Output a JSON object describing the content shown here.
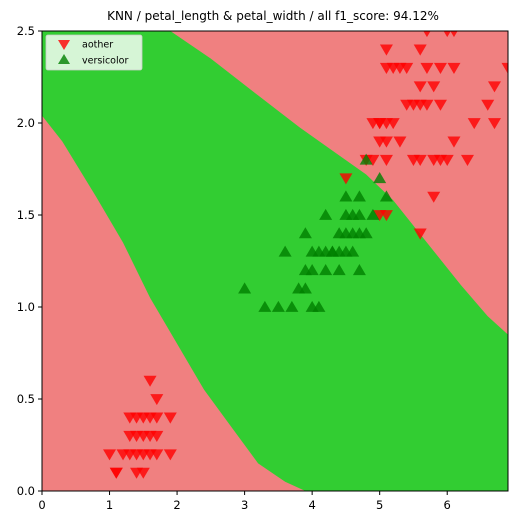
{
  "chart_data": {
    "type": "scatter",
    "title": "KNN / petal_length & petal_width / all f1_score: 94.12%",
    "xlabel": "",
    "ylabel": "",
    "xlim": [
      0,
      6.9
    ],
    "ylim": [
      0,
      2.5
    ],
    "x_ticks": [
      "0",
      "1",
      "2",
      "3",
      "4",
      "5",
      "6"
    ],
    "y_ticks": [
      "0.0",
      "0.5",
      "1.0",
      "1.5",
      "2.0",
      "2.5"
    ],
    "legend_position": "top-left",
    "grid": false,
    "background_regions": {
      "description_colors": {
        "aother": "#f08080",
        "versicolor": "#32cd32"
      },
      "green_band_left_boundary": [
        [
          0,
          2.04
        ],
        [
          0.3,
          1.9
        ],
        [
          0.8,
          1.6
        ],
        [
          1.2,
          1.35
        ],
        [
          1.6,
          1.05
        ],
        [
          2.0,
          0.8
        ],
        [
          2.4,
          0.55
        ],
        [
          2.8,
          0.35
        ],
        [
          3.2,
          0.15
        ],
        [
          3.6,
          0.05
        ],
        [
          3.9,
          0.0
        ]
      ],
      "green_band_right_boundary": [
        [
          1.9,
          2.5
        ],
        [
          2.5,
          2.35
        ],
        [
          3.2,
          2.15
        ],
        [
          3.8,
          1.98
        ],
        [
          4.3,
          1.85
        ],
        [
          4.8,
          1.72
        ],
        [
          5.2,
          1.58
        ],
        [
          5.7,
          1.35
        ],
        [
          6.2,
          1.12
        ],
        [
          6.6,
          0.95
        ],
        [
          6.9,
          0.85
        ]
      ]
    },
    "series": [
      {
        "name": "aother",
        "marker": "triangle-down",
        "color": "#ff0000",
        "points": [
          [
            1.0,
            0.2
          ],
          [
            1.1,
            0.1
          ],
          [
            1.2,
            0.2
          ],
          [
            1.3,
            0.2
          ],
          [
            1.3,
            0.3
          ],
          [
            1.3,
            0.4
          ],
          [
            1.4,
            0.1
          ],
          [
            1.4,
            0.2
          ],
          [
            1.4,
            0.3
          ],
          [
            1.5,
            0.1
          ],
          [
            1.5,
            0.2
          ],
          [
            1.5,
            0.4
          ],
          [
            1.6,
            0.2
          ],
          [
            1.6,
            0.4
          ],
          [
            1.6,
            0.6
          ],
          [
            1.7,
            0.2
          ],
          [
            1.7,
            0.3
          ],
          [
            1.7,
            0.4
          ],
          [
            1.7,
            0.5
          ],
          [
            1.9,
            0.2
          ],
          [
            1.9,
            0.4
          ],
          [
            1.4,
            0.4
          ],
          [
            1.6,
            0.3
          ],
          [
            1.5,
            0.3
          ],
          [
            1.1,
            0.1
          ],
          [
            4.5,
            1.7
          ],
          [
            4.8,
            1.8
          ],
          [
            4.9,
            1.8
          ],
          [
            5.0,
            1.5
          ],
          [
            5.0,
            1.9
          ],
          [
            5.0,
            2.0
          ],
          [
            5.1,
            1.5
          ],
          [
            5.1,
            1.8
          ],
          [
            5.1,
            1.9
          ],
          [
            5.1,
            2.0
          ],
          [
            5.1,
            2.3
          ],
          [
            5.1,
            2.4
          ],
          [
            5.2,
            2.0
          ],
          [
            5.2,
            2.3
          ],
          [
            5.3,
            1.9
          ],
          [
            5.3,
            2.3
          ],
          [
            5.4,
            2.1
          ],
          [
            5.4,
            2.3
          ],
          [
            5.5,
            1.8
          ],
          [
            5.5,
            2.1
          ],
          [
            5.6,
            1.4
          ],
          [
            5.6,
            1.8
          ],
          [
            5.6,
            2.1
          ],
          [
            5.6,
            2.2
          ],
          [
            5.6,
            2.4
          ],
          [
            5.7,
            2.1
          ],
          [
            5.7,
            2.3
          ],
          [
            5.7,
            2.5
          ],
          [
            5.8,
            1.6
          ],
          [
            5.8,
            1.8
          ],
          [
            5.8,
            2.2
          ],
          [
            5.9,
            2.1
          ],
          [
            5.9,
            2.3
          ],
          [
            6.0,
            1.8
          ],
          [
            6.0,
            2.5
          ],
          [
            6.1,
            1.9
          ],
          [
            6.1,
            2.3
          ],
          [
            6.1,
            2.5
          ],
          [
            6.3,
            1.8
          ],
          [
            6.6,
            2.1
          ],
          [
            6.7,
            2.0
          ],
          [
            6.7,
            2.2
          ],
          [
            6.9,
            2.3
          ],
          [
            6.4,
            2.0
          ],
          [
            5.9,
            1.8
          ],
          [
            5.0,
            2.0
          ],
          [
            4.9,
            2.0
          ]
        ]
      },
      {
        "name": "versicolor",
        "marker": "triangle-up",
        "color": "#008000",
        "points": [
          [
            3.0,
            1.1
          ],
          [
            3.3,
            1.0
          ],
          [
            3.5,
            1.0
          ],
          [
            3.6,
            1.3
          ],
          [
            3.7,
            1.0
          ],
          [
            3.8,
            1.1
          ],
          [
            3.9,
            1.1
          ],
          [
            3.9,
            1.2
          ],
          [
            3.9,
            1.4
          ],
          [
            4.0,
            1.0
          ],
          [
            4.0,
            1.2
          ],
          [
            4.0,
            1.3
          ],
          [
            4.1,
            1.0
          ],
          [
            4.1,
            1.3
          ],
          [
            4.2,
            1.2
          ],
          [
            4.2,
            1.3
          ],
          [
            4.2,
            1.5
          ],
          [
            4.3,
            1.3
          ],
          [
            4.4,
            1.2
          ],
          [
            4.4,
            1.3
          ],
          [
            4.4,
            1.4
          ],
          [
            4.5,
            1.3
          ],
          [
            4.5,
            1.5
          ],
          [
            4.5,
            1.6
          ],
          [
            4.6,
            1.3
          ],
          [
            4.6,
            1.4
          ],
          [
            4.6,
            1.5
          ],
          [
            4.7,
            1.2
          ],
          [
            4.7,
            1.4
          ],
          [
            4.7,
            1.5
          ],
          [
            4.7,
            1.6
          ],
          [
            4.8,
            1.4
          ],
          [
            4.8,
            1.8
          ],
          [
            4.9,
            1.5
          ],
          [
            5.0,
            1.7
          ],
          [
            5.1,
            1.6
          ],
          [
            4.5,
            1.4
          ],
          [
            4.3,
            1.3
          ]
        ]
      }
    ]
  }
}
